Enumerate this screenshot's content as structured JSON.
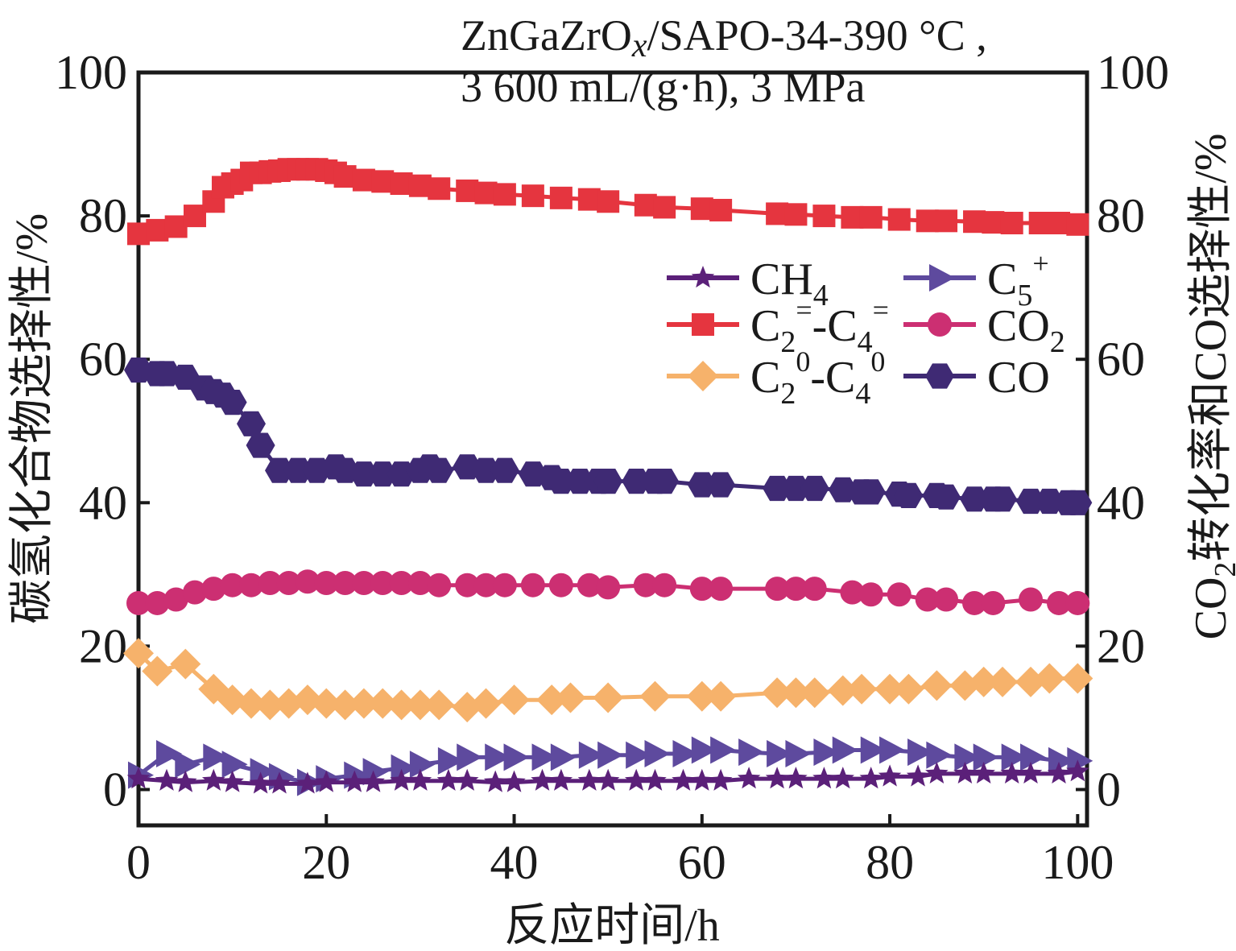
{
  "chart_data": {
    "type": "line",
    "title_lines": [
      {
        "parts": [
          [
            "ZnGaZrO",
            ""
          ],
          [
            "x",
            "italic"
          ],
          [
            "/SAPO-34-390 °C ,",
            ""
          ]
        ]
      },
      {
        "parts": [
          [
            "3 600 mL/(g·h), 3 MPa",
            ""
          ]
        ]
      }
    ],
    "xlabel": "反应时间/h",
    "ylabel_left": "碳氢化合物选择性/%",
    "ylabel_right": {
      "main": "CO",
      "sub": "2",
      "rest": "转化率和CO选择性/%"
    },
    "xlim": [
      0,
      101
    ],
    "ylim": [
      -5,
      100
    ],
    "xticks": [
      "0",
      "20",
      "40",
      "60",
      "80",
      "100"
    ],
    "yticks": [
      "0",
      "20",
      "40",
      "60",
      "80",
      "100"
    ],
    "legend_position": "center-right",
    "series": [
      {
        "id": "ch4",
        "legend": [
          [
            "CH",
            "",
            ""
          ],
          [
            "4",
            "sub",
            ""
          ]
        ],
        "color": "#5b2079",
        "marker": "star",
        "x": [
          0,
          3,
          5,
          8,
          10,
          13,
          15,
          18,
          20,
          23,
          25,
          28,
          30,
          33,
          35,
          38,
          40,
          43,
          45,
          48,
          50,
          53,
          55,
          58,
          60,
          62,
          65,
          68,
          70,
          73,
          75,
          78,
          80,
          83,
          85,
          88,
          90,
          93,
          95,
          98,
          100
        ],
        "y": [
          1.5,
          1.2,
          1.0,
          1.2,
          1.0,
          0.8,
          0.8,
          0.8,
          1.0,
          1.0,
          1.0,
          1.2,
          1.2,
          1.2,
          1.2,
          1.0,
          1.0,
          1.2,
          1.2,
          1.2,
          1.2,
          1.2,
          1.2,
          1.2,
          1.2,
          1.2,
          1.5,
          1.5,
          1.5,
          1.5,
          1.5,
          1.5,
          1.8,
          1.8,
          2.2,
          2.2,
          2.2,
          2.2,
          2.2,
          2.2,
          2.5
        ]
      },
      {
        "id": "c2c4_olefin",
        "legend": [
          [
            "C",
            "",
            ""
          ],
          [
            "2",
            "sub",
            ""
          ],
          [
            "=",
            "sup",
            ""
          ],
          [
            "-C",
            "",
            ""
          ],
          [
            "4",
            "sub",
            ""
          ],
          [
            "=",
            "sup",
            ""
          ]
        ],
        "color": "#e5353f",
        "marker": "square",
        "x": [
          0,
          2,
          4,
          6,
          8,
          9,
          10,
          11,
          12,
          13,
          14,
          15,
          16,
          17,
          18,
          19,
          20,
          21,
          22,
          24,
          26,
          28,
          30,
          32,
          35,
          37,
          39,
          42,
          45,
          48,
          50,
          54,
          56,
          60,
          62,
          68,
          70,
          73,
          76,
          78,
          81,
          84,
          86,
          89,
          91,
          93,
          96,
          98,
          100
        ],
        "y": [
          77.5,
          78,
          78.5,
          80,
          82,
          84,
          84.5,
          85,
          86,
          86,
          86.2,
          86.3,
          86.5,
          86.5,
          86.5,
          86.5,
          86.3,
          86,
          85.5,
          85,
          84.8,
          84.5,
          84.2,
          83.8,
          83.5,
          83.2,
          83,
          82.8,
          82.5,
          82.3,
          82,
          81.5,
          81.2,
          81,
          80.8,
          80.3,
          80.2,
          80,
          79.8,
          79.8,
          79.5,
          79.3,
          79.3,
          79.2,
          79.1,
          79,
          79,
          79,
          78.8
        ]
      },
      {
        "id": "c2c4_paraffin",
        "legend": [
          [
            "C",
            "",
            ""
          ],
          [
            "2",
            "sub",
            ""
          ],
          [
            "0",
            "sup",
            ""
          ],
          [
            "-C",
            "",
            ""
          ],
          [
            "4",
            "sub",
            ""
          ],
          [
            "0",
            "sup",
            ""
          ]
        ],
        "color": "#f6b26b",
        "marker": "diamond",
        "x": [
          0,
          2,
          5,
          8,
          10,
          12,
          14,
          16,
          18,
          20,
          22,
          24,
          26,
          28,
          30,
          32,
          35,
          37,
          40,
          44,
          46,
          50,
          55,
          60,
          62,
          68,
          70,
          72,
          75,
          77,
          80,
          82,
          85,
          88,
          90,
          92,
          95,
          97,
          100
        ],
        "y": [
          19,
          16.5,
          17.5,
          14,
          12.5,
          12,
          11.8,
          12,
          12.5,
          12,
          11.8,
          12,
          12,
          11.8,
          11.8,
          11.8,
          11.5,
          12,
          12.5,
          12.5,
          12.8,
          12.8,
          13,
          13,
          13,
          13.5,
          13.5,
          13.5,
          13.8,
          14,
          14,
          14,
          14.5,
          14.5,
          15,
          15,
          15,
          15.5,
          15.5
        ]
      },
      {
        "id": "c5plus",
        "legend": [
          [
            "C",
            "",
            ""
          ],
          [
            "5",
            "sub",
            ""
          ],
          [
            "+",
            "sup",
            ""
          ]
        ],
        "color": "#5e4a9e",
        "marker": "triangle",
        "x": [
          0,
          3,
          5,
          8,
          10,
          13,
          15,
          18,
          20,
          23,
          25,
          28,
          30,
          33,
          35,
          38,
          40,
          43,
          45,
          48,
          50,
          53,
          55,
          58,
          60,
          62,
          65,
          68,
          70,
          73,
          75,
          78,
          80,
          83,
          85,
          88,
          90,
          93,
          95,
          98,
          100
        ],
        "y": [
          2,
          5,
          3.5,
          4.5,
          3.5,
          2.5,
          1.8,
          1,
          1.5,
          2,
          2.5,
          3,
          3.5,
          4,
          4.5,
          4.5,
          4.5,
          4.5,
          4.5,
          4.8,
          4.8,
          4.8,
          5,
          5,
          5.5,
          5.5,
          5.2,
          5,
          5,
          5.2,
          5.5,
          5.5,
          5.5,
          5.2,
          4.8,
          4.5,
          4.5,
          4.5,
          4.5,
          4,
          4
        ]
      },
      {
        "id": "co2",
        "legend": [
          [
            "CO",
            "",
            ""
          ],
          [
            "2",
            "sub",
            ""
          ]
        ],
        "color": "#cc2f72",
        "marker": "circle",
        "x": [
          0,
          2,
          4,
          6,
          8,
          10,
          12,
          14,
          16,
          18,
          20,
          22,
          24,
          26,
          28,
          30,
          32,
          35,
          37,
          39,
          42,
          45,
          48,
          50,
          54,
          56,
          60,
          62,
          68,
          70,
          72,
          76,
          78,
          81,
          84,
          86,
          89,
          91,
          95,
          98,
          100
        ],
        "y": [
          26,
          26,
          26.5,
          27.5,
          28,
          28.5,
          28.5,
          28.8,
          28.8,
          29,
          28.8,
          28.8,
          28.8,
          28.8,
          28.8,
          28.8,
          28.5,
          28.5,
          28.5,
          28.5,
          28.5,
          28.5,
          28.5,
          28.2,
          28.5,
          28.5,
          28,
          28,
          28,
          28,
          28,
          27.5,
          27.2,
          27.2,
          26.5,
          26.5,
          26,
          26,
          26.5,
          26,
          26
        ]
      },
      {
        "id": "co",
        "legend": [
          [
            "CO",
            "",
            ""
          ]
        ],
        "color": "#3f2a74",
        "marker": "hexagon",
        "x": [
          0,
          2,
          3,
          5,
          7,
          8,
          9,
          10,
          12,
          13,
          15,
          17,
          19,
          21,
          22,
          24,
          26,
          28,
          30,
          31,
          32,
          35,
          37,
          39,
          42,
          44,
          45,
          47,
          49,
          50,
          53,
          55,
          56,
          60,
          62,
          68,
          70,
          72,
          75,
          77,
          78,
          81,
          82,
          85,
          86,
          89,
          91,
          92,
          95,
          97,
          99,
          100
        ],
        "y": [
          58.5,
          58,
          58,
          57.5,
          56,
          55.5,
          55,
          54,
          51,
          48,
          44.5,
          44.5,
          44.5,
          45,
          44.5,
          44,
          44,
          44,
          44.5,
          45,
          44.5,
          45,
          44.5,
          44.5,
          44,
          43.5,
          43,
          43,
          43,
          43,
          43,
          43,
          43,
          42.5,
          42.5,
          42,
          42,
          42,
          41.8,
          41.5,
          41.5,
          41.2,
          41,
          41,
          40.8,
          40.5,
          40.5,
          40.5,
          40.2,
          40.2,
          40,
          40
        ]
      }
    ],
    "legend_order": [
      [
        "ch4",
        "c5plus"
      ],
      [
        "c2c4_olefin",
        "co2"
      ],
      [
        "c2c4_paraffin",
        "co"
      ]
    ]
  }
}
